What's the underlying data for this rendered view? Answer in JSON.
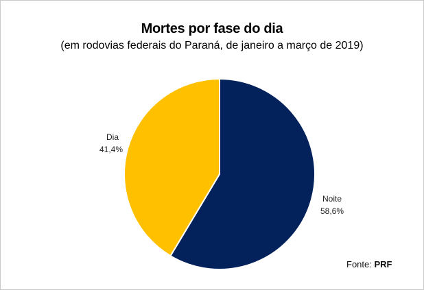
{
  "chart_data": {
    "type": "pie",
    "title": "Mortes por fase do dia",
    "subtitle": "(em rodovias federais do Paraná, de janeiro a março de 2019)",
    "slices": [
      {
        "label": "Noite",
        "value": 58.6,
        "value_label": "58,6%",
        "color": "#03215b"
      },
      {
        "label": "Dia",
        "value": 41.4,
        "value_label": "41,4%",
        "color": "#ffc000"
      }
    ],
    "source_prefix": "Fonte: ",
    "source_name": "PRF"
  }
}
